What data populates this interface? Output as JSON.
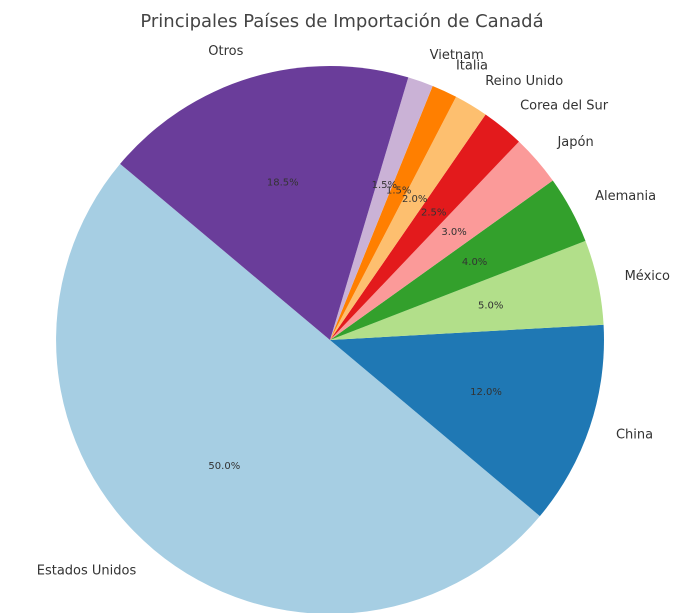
{
  "chart_data": {
    "type": "pie",
    "title": "Principales Países de Importación de Canadá",
    "categories": [
      "Estados Unidos",
      "China",
      "México",
      "Alemania",
      "Japón",
      "Corea del Sur",
      "Reino Unido",
      "Italia",
      "Vietnam",
      "Otros"
    ],
    "values": [
      50,
      12,
      5,
      4,
      3,
      2.5,
      2,
      1.5,
      1.5,
      18.5
    ],
    "value_labels": [
      "50.0%",
      "12.0%",
      "5.0%",
      "4.0%",
      "3.0%",
      "2.5%",
      "2.0%",
      "1.5%",
      "1.5%",
      "18.5%"
    ],
    "colors": [
      "#a6cee3",
      "#1f78b4",
      "#b2df8a",
      "#33a02c",
      "#fb9a99",
      "#e31a1c",
      "#fdbf6f",
      "#ff7f00",
      "#cab2d6",
      "#6a3d9a"
    ],
    "startangle": 140
  }
}
